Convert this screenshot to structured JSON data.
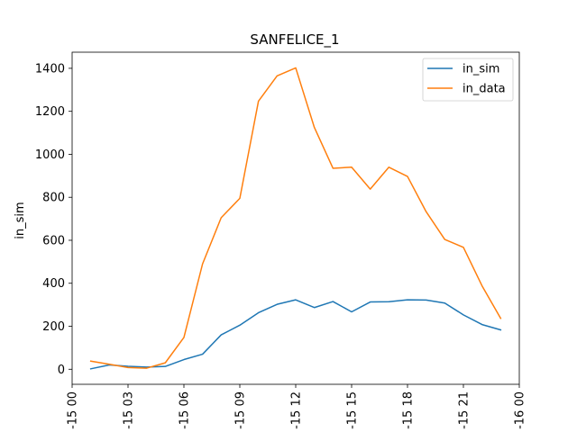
{
  "chart_data": {
    "type": "line",
    "title": "SANFELICE_1",
    "xlabel": "",
    "ylabel": "in_sim",
    "x": [
      "01:00",
      "02:00",
      "03:00",
      "04:00",
      "05:00",
      "06:00",
      "07:00",
      "08:00",
      "09:00",
      "10:00",
      "11:00",
      "12:00",
      "13:00",
      "14:00",
      "15:00",
      "16:00",
      "17:00",
      "18:00",
      "19:00",
      "20:00",
      "21:00",
      "22:00",
      "23:00"
    ],
    "x_ticks": [
      "-15 00",
      "-15 03",
      "-15 06",
      "-15 09",
      "-15 12",
      "-15 15",
      "-15 18",
      "-15 21",
      "-16 00"
    ],
    "x_range_hours": [
      0,
      24
    ],
    "ylim": [
      -70,
      1475
    ],
    "y_ticks": [
      0,
      200,
      400,
      600,
      800,
      1000,
      1200,
      1400
    ],
    "series": [
      {
        "name": "in_sim",
        "color": "#1f77b4",
        "values": [
          2,
          20,
          14,
          10,
          13,
          45,
          70,
          160,
          205,
          263,
          302,
          323,
          287,
          315,
          267,
          313,
          314,
          323,
          322,
          308,
          253,
          208,
          183
        ]
      },
      {
        "name": "in_data",
        "color": "#ff7f0e",
        "values": [
          38,
          23,
          8,
          5,
          30,
          148,
          490,
          705,
          795,
          1247,
          1365,
          1402,
          1125,
          935,
          940,
          838,
          940,
          897,
          733,
          604,
          567,
          388,
          237
        ]
      }
    ],
    "grid": false,
    "legend_position": "top-right"
  }
}
